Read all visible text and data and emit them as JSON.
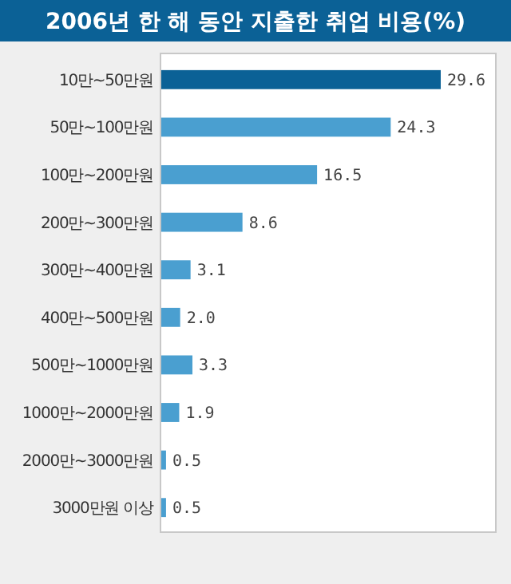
{
  "chart_data": {
    "type": "bar",
    "orientation": "horizontal",
    "title": "2006년 한 해 동안 지출한 취업 비용(%)",
    "categories": [
      "10만~50만원",
      "50만~100만원",
      "100만~200만원",
      "200만~300만원",
      "300만~400만원",
      "400만~500만원",
      "500만~1000만원",
      "1000만~2000만원",
      "2000만~3000만원",
      "3000만원 이상"
    ],
    "values": [
      29.6,
      24.3,
      16.5,
      8.6,
      3.1,
      2.0,
      3.3,
      1.9,
      0.5,
      0.5
    ],
    "colors": [
      "#0b6196",
      "#4a9fd0",
      "#4a9fd0",
      "#4a9fd0",
      "#4a9fd0",
      "#4a9fd0",
      "#4a9fd0",
      "#4a9fd0",
      "#4a9fd0",
      "#4a9fd0"
    ],
    "value_labels": [
      "29.6",
      "24.3",
      "16.5",
      "8.6",
      "3.1",
      "2.0",
      "3.3",
      "1.9",
      "0.5",
      "0.5"
    ]
  }
}
